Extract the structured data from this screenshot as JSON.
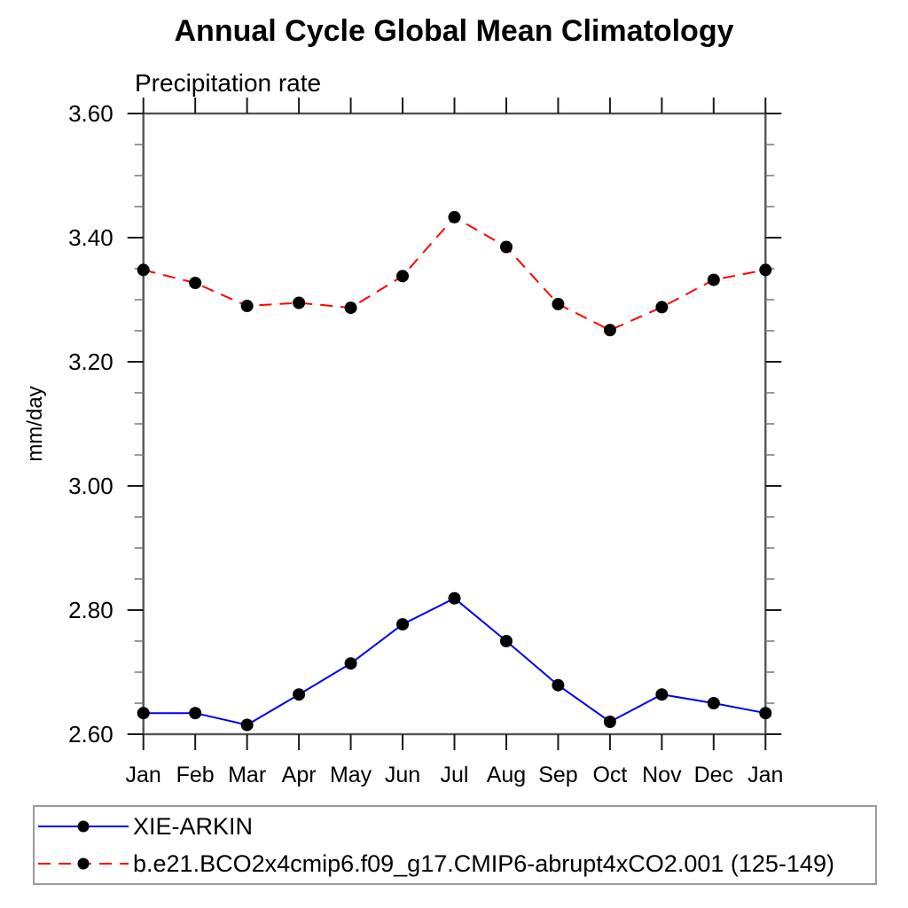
{
  "chart_data": {
    "type": "line",
    "title": "Annual Cycle Global Mean Climatology",
    "subtitle": "Precipitation rate",
    "ylabel": "mm/day",
    "xlabel": "",
    "categories": [
      "Jan",
      "Feb",
      "Mar",
      "Apr",
      "May",
      "Jun",
      "Jul",
      "Aug",
      "Sep",
      "Oct",
      "Nov",
      "Dec",
      "Jan"
    ],
    "series": [
      {
        "name": "XIE-ARKIN",
        "color": "#0000ee",
        "line_style": "solid",
        "marker": "filled-circle",
        "marker_color": "#000000",
        "values": [
          2.634,
          2.634,
          2.615,
          2.664,
          2.714,
          2.777,
          2.819,
          2.75,
          2.679,
          2.62,
          2.664,
          2.65,
          2.634
        ]
      },
      {
        "name": "b.e21.BCO2x4cmip6.f09_g17.CMIP6-abrupt4xCO2.001 (125-149)",
        "color": "#ff0000",
        "line_style": "dashed",
        "marker": "filled-circle",
        "marker_color": "#000000",
        "values": [
          3.348,
          3.327,
          3.29,
          3.295,
          3.287,
          3.338,
          3.433,
          3.385,
          3.293,
          3.251,
          3.288,
          3.332,
          3.348
        ]
      }
    ],
    "ylim": [
      2.6,
      3.6
    ],
    "ytick_labels": [
      "3.60",
      "3.40",
      "3.20",
      "3.00",
      "2.80",
      "2.60"
    ],
    "ytick_major_step": 0.2,
    "ytick_minor_step": 0.05,
    "grid": "off",
    "legend_position": "bottom-left-box",
    "axis_color": "#555555",
    "tick_color": "#1a1a1a"
  }
}
